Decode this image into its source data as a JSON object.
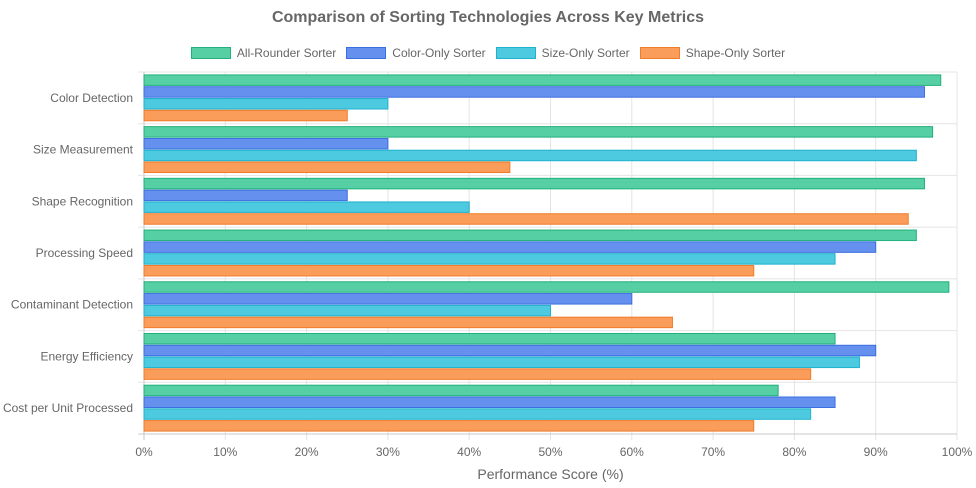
{
  "chart_data": {
    "type": "bar",
    "orientation": "horizontal",
    "title": "Comparison of Sorting Technologies Across Key Metrics",
    "xlabel": "Performance Score (%)",
    "ylabel": "",
    "xlim": [
      0,
      100
    ],
    "x_ticks": [
      "0%",
      "10%",
      "20%",
      "30%",
      "40%",
      "50%",
      "60%",
      "70%",
      "80%",
      "90%",
      "100%"
    ],
    "grid": true,
    "legend_position": "top",
    "categories": [
      "Color Detection",
      "Size Measurement",
      "Shape Recognition",
      "Processing Speed",
      "Contaminant Detection",
      "Energy Efficiency",
      "Cost per Unit Processed"
    ],
    "series": [
      {
        "name": "All-Rounder Sorter",
        "color": "#56cfa4",
        "border": "#22b07d",
        "values": [
          98,
          97,
          96,
          95,
          99,
          85,
          78
        ]
      },
      {
        "name": "Color-Only Sorter",
        "color": "#6690ee",
        "border": "#3a6fe0",
        "values": [
          96,
          30,
          25,
          90,
          60,
          90,
          85
        ]
      },
      {
        "name": "Size-Only Sorter",
        "color": "#4dc9e0",
        "border": "#1fb2cc",
        "values": [
          30,
          95,
          40,
          85,
          50,
          88,
          82
        ]
      },
      {
        "name": "Shape-Only Sorter",
        "color": "#fb9d5a",
        "border": "#f07b2a",
        "values": [
          25,
          45,
          94,
          75,
          65,
          82,
          75
        ]
      }
    ]
  }
}
